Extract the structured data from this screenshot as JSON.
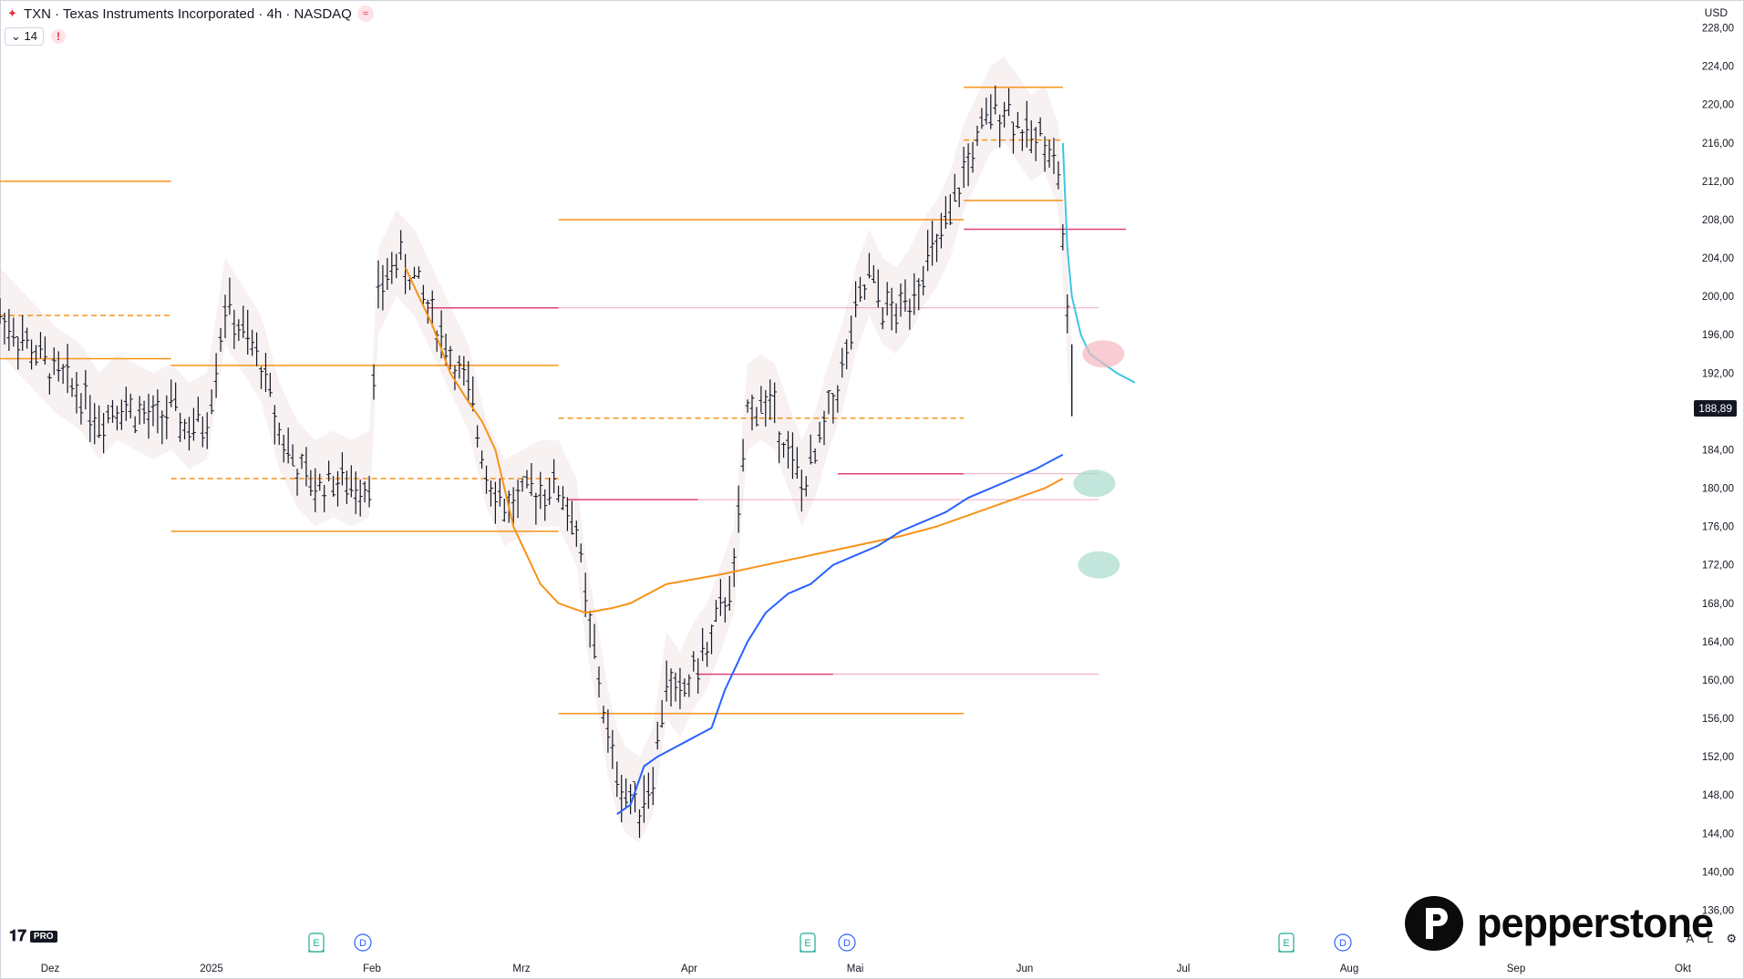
{
  "header": {
    "title": "TXN · Texas Instruments Incorporated · 4h · NASDAQ",
    "interval_value": "14",
    "currency": "USD"
  },
  "last_price": "188,89",
  "brand": {
    "name": "pepperstone",
    "platform": "PRO"
  },
  "bottom_right": {
    "auto": "A",
    "log": "L"
  },
  "colors": {
    "orange_line": "#f7931a",
    "blue_line": "#2962ff",
    "cyan_projection": "#3ec5e0",
    "pink_level": "#e0407a",
    "band_fill": "#e9d6da",
    "resist_circle": "#f6b7c2",
    "support_circle": "#a8dccc"
  },
  "chart_data": {
    "type": "bar",
    "title": "TXN · Texas Instruments Incorporated · 4h · NASDAQ",
    "ylabel": "USD",
    "ylim": [
      133,
      229
    ],
    "y_ticks": [
      "228,00",
      "224,00",
      "220,00",
      "216,00",
      "212,00",
      "208,00",
      "204,00",
      "200,00",
      "196,00",
      "192,00",
      "188,00",
      "184,00",
      "180,00",
      "176,00",
      "172,00",
      "168,00",
      "164,00",
      "160,00",
      "156,00",
      "152,00",
      "148,00",
      "144,00",
      "140,00",
      "136,00"
    ],
    "x_ticks": [
      "Dez",
      "2025",
      "Feb",
      "Mrz",
      "Apr",
      "Mai",
      "Jun",
      "Jul",
      "Aug",
      "Sep",
      "Okt"
    ],
    "events": [
      {
        "label": "E",
        "near": "Feb"
      },
      {
        "label": "D",
        "near": "Feb"
      },
      {
        "label": "E",
        "near": "Apr"
      },
      {
        "label": "D",
        "near": "Apr"
      },
      {
        "label": "E",
        "near": "Jul"
      },
      {
        "label": "D",
        "near": "Jul"
      }
    ],
    "price_path": [
      [
        0,
        198
      ],
      [
        6,
        195
      ],
      [
        12,
        192
      ],
      [
        18,
        190
      ],
      [
        22,
        187
      ],
      [
        26,
        189
      ],
      [
        30,
        188
      ],
      [
        34,
        187
      ],
      [
        38,
        188
      ],
      [
        42,
        186
      ],
      [
        46,
        187
      ],
      [
        50,
        199
      ],
      [
        54,
        196
      ],
      [
        58,
        193
      ],
      [
        62,
        186
      ],
      [
        66,
        182
      ],
      [
        70,
        180
      ],
      [
        74,
        181
      ],
      [
        78,
        180
      ],
      [
        82,
        181
      ],
      [
        84,
        200
      ],
      [
        88,
        204
      ],
      [
        92,
        202
      ],
      [
        96,
        198
      ],
      [
        100,
        194
      ],
      [
        104,
        190
      ],
      [
        108,
        182
      ],
      [
        112,
        178
      ],
      [
        116,
        179
      ],
      [
        120,
        180
      ],
      [
        124,
        180
      ],
      [
        128,
        176
      ],
      [
        130,
        168
      ],
      [
        133,
        160
      ],
      [
        135,
        154
      ],
      [
        137,
        150
      ],
      [
        139,
        148
      ],
      [
        142,
        147
      ],
      [
        145,
        150
      ],
      [
        148,
        160
      ],
      [
        151,
        158
      ],
      [
        154,
        161
      ],
      [
        157,
        163
      ],
      [
        160,
        167
      ],
      [
        163,
        171
      ],
      [
        166,
        188
      ],
      [
        169,
        189
      ],
      [
        172,
        188
      ],
      [
        175,
        184
      ],
      [
        178,
        180
      ],
      [
        181,
        183
      ],
      [
        184,
        188
      ],
      [
        187,
        192
      ],
      [
        190,
        198
      ],
      [
        193,
        202
      ],
      [
        196,
        199
      ],
      [
        199,
        198
      ],
      [
        202,
        200
      ],
      [
        205,
        203
      ],
      [
        208,
        205
      ],
      [
        211,
        208
      ],
      [
        214,
        213
      ],
      [
        217,
        216
      ],
      [
        220,
        219
      ],
      [
        223,
        220
      ],
      [
        226,
        218
      ],
      [
        229,
        216
      ],
      [
        232,
        217
      ],
      [
        235,
        213
      ],
      [
        238,
        190
      ]
    ],
    "series": [
      {
        "name": "",
        "color": "#f7931a",
        "values": [
          [
            90,
            203
          ],
          [
            96,
            197
          ],
          [
            100,
            192
          ],
          [
            104,
            189
          ],
          [
            107,
            187
          ],
          [
            110,
            184
          ],
          [
            112,
            180
          ],
          [
            114,
            176
          ],
          [
            117,
            173
          ],
          [
            120,
            170
          ],
          [
            124,
            168
          ],
          [
            130,
            167
          ],
          [
            136,
            167.5
          ],
          [
            140,
            168
          ],
          [
            148,
            170
          ],
          [
            160,
            171
          ],
          [
            170,
            172
          ],
          [
            180,
            173
          ],
          [
            190,
            174
          ],
          [
            200,
            175
          ],
          [
            208,
            176
          ],
          [
            214,
            177
          ],
          [
            220,
            178
          ],
          [
            226,
            179
          ],
          [
            232,
            180
          ],
          [
            236,
            181
          ]
        ]
      },
      {
        "name": "",
        "color": "#2962ff",
        "values": [
          [
            137,
            146
          ],
          [
            140,
            147
          ],
          [
            143,
            151
          ],
          [
            146,
            152
          ],
          [
            150,
            153
          ],
          [
            154,
            154
          ],
          [
            158,
            155
          ],
          [
            161,
            159
          ],
          [
            163,
            161
          ],
          [
            166,
            164
          ],
          [
            170,
            167
          ],
          [
            175,
            169
          ],
          [
            180,
            170
          ],
          [
            185,
            172
          ],
          [
            190,
            173
          ],
          [
            195,
            174
          ],
          [
            200,
            175.5
          ],
          [
            205,
            176.5
          ],
          [
            210,
            177.5
          ],
          [
            215,
            179
          ],
          [
            220,
            180
          ],
          [
            225,
            181
          ],
          [
            230,
            182
          ],
          [
            236,
            183.5
          ]
        ]
      },
      {
        "name": "",
        "color": "#3ec5e0",
        "values": [
          [
            236,
            216
          ],
          [
            237,
            205
          ],
          [
            238,
            200
          ],
          [
            240,
            196
          ],
          [
            242,
            194
          ],
          [
            245,
            193
          ],
          [
            248,
            192
          ],
          [
            252,
            191
          ]
        ]
      }
    ],
    "levels": [
      {
        "price": 212,
        "style": "solid",
        "color": "#f7931a",
        "from": 0,
        "to": 38
      },
      {
        "price": 193.5,
        "style": "solid",
        "color": "#f7931a",
        "from": 0,
        "to": 38
      },
      {
        "price": 198,
        "style": "dashed",
        "color": "#f7931a",
        "from": 0,
        "to": 38
      },
      {
        "price": 192.8,
        "style": "solid",
        "color": "#f7931a",
        "from": 38,
        "to": 124
      },
      {
        "price": 181,
        "style": "dashed",
        "color": "#f7931a",
        "from": 38,
        "to": 124
      },
      {
        "price": 175.5,
        "style": "solid",
        "color": "#f7931a",
        "from": 38,
        "to": 124
      },
      {
        "price": 208,
        "style": "solid",
        "color": "#f7931a",
        "from": 124,
        "to": 214
      },
      {
        "price": 187.3,
        "style": "dashed",
        "color": "#f7931a",
        "from": 124,
        "to": 214
      },
      {
        "price": 156.5,
        "style": "solid",
        "color": "#f7931a",
        "from": 124,
        "to": 214
      },
      {
        "price": 221.8,
        "style": "solid",
        "color": "#f7931a",
        "from": 214,
        "to": 236
      },
      {
        "price": 216.3,
        "style": "dashed",
        "color": "#f7931a",
        "from": 214,
        "to": 236
      },
      {
        "price": 210,
        "style": "solid",
        "color": "#f7931a",
        "from": 214,
        "to": 236
      },
      {
        "price": 198.8,
        "style": "solid",
        "color": "#e0407a",
        "from": 95,
        "to": 124
      },
      {
        "price": 198.8,
        "style": "thin",
        "color": "#e0407a",
        "from": 124,
        "to": 244
      },
      {
        "price": 178.8,
        "style": "solid",
        "color": "#e0407a",
        "from": 126,
        "to": 155
      },
      {
        "price": 178.8,
        "style": "thin",
        "color": "#e0407a",
        "from": 155,
        "to": 244
      },
      {
        "price": 160.6,
        "style": "solid",
        "color": "#e0407a",
        "from": 155,
        "to": 185
      },
      {
        "price": 160.6,
        "style": "thin",
        "color": "#e0407a",
        "from": 185,
        "to": 244
      },
      {
        "price": 181.5,
        "style": "solid",
        "color": "#e0407a",
        "from": 186,
        "to": 214
      },
      {
        "price": 181.5,
        "style": "thin",
        "color": "#e0407a",
        "from": 214,
        "to": 244
      },
      {
        "price": 207,
        "style": "solid",
        "color": "#e0407a",
        "from": 214,
        "to": 250
      }
    ],
    "zones": [
      {
        "type": "resistance",
        "price": 194,
        "at": 245
      },
      {
        "type": "support",
        "price": 180.5,
        "at": 243
      },
      {
        "type": "support",
        "price": 172,
        "at": 244
      }
    ],
    "last_bar": {
      "high": 195,
      "low": 187.5,
      "close": 188.89
    },
    "grid": false
  }
}
